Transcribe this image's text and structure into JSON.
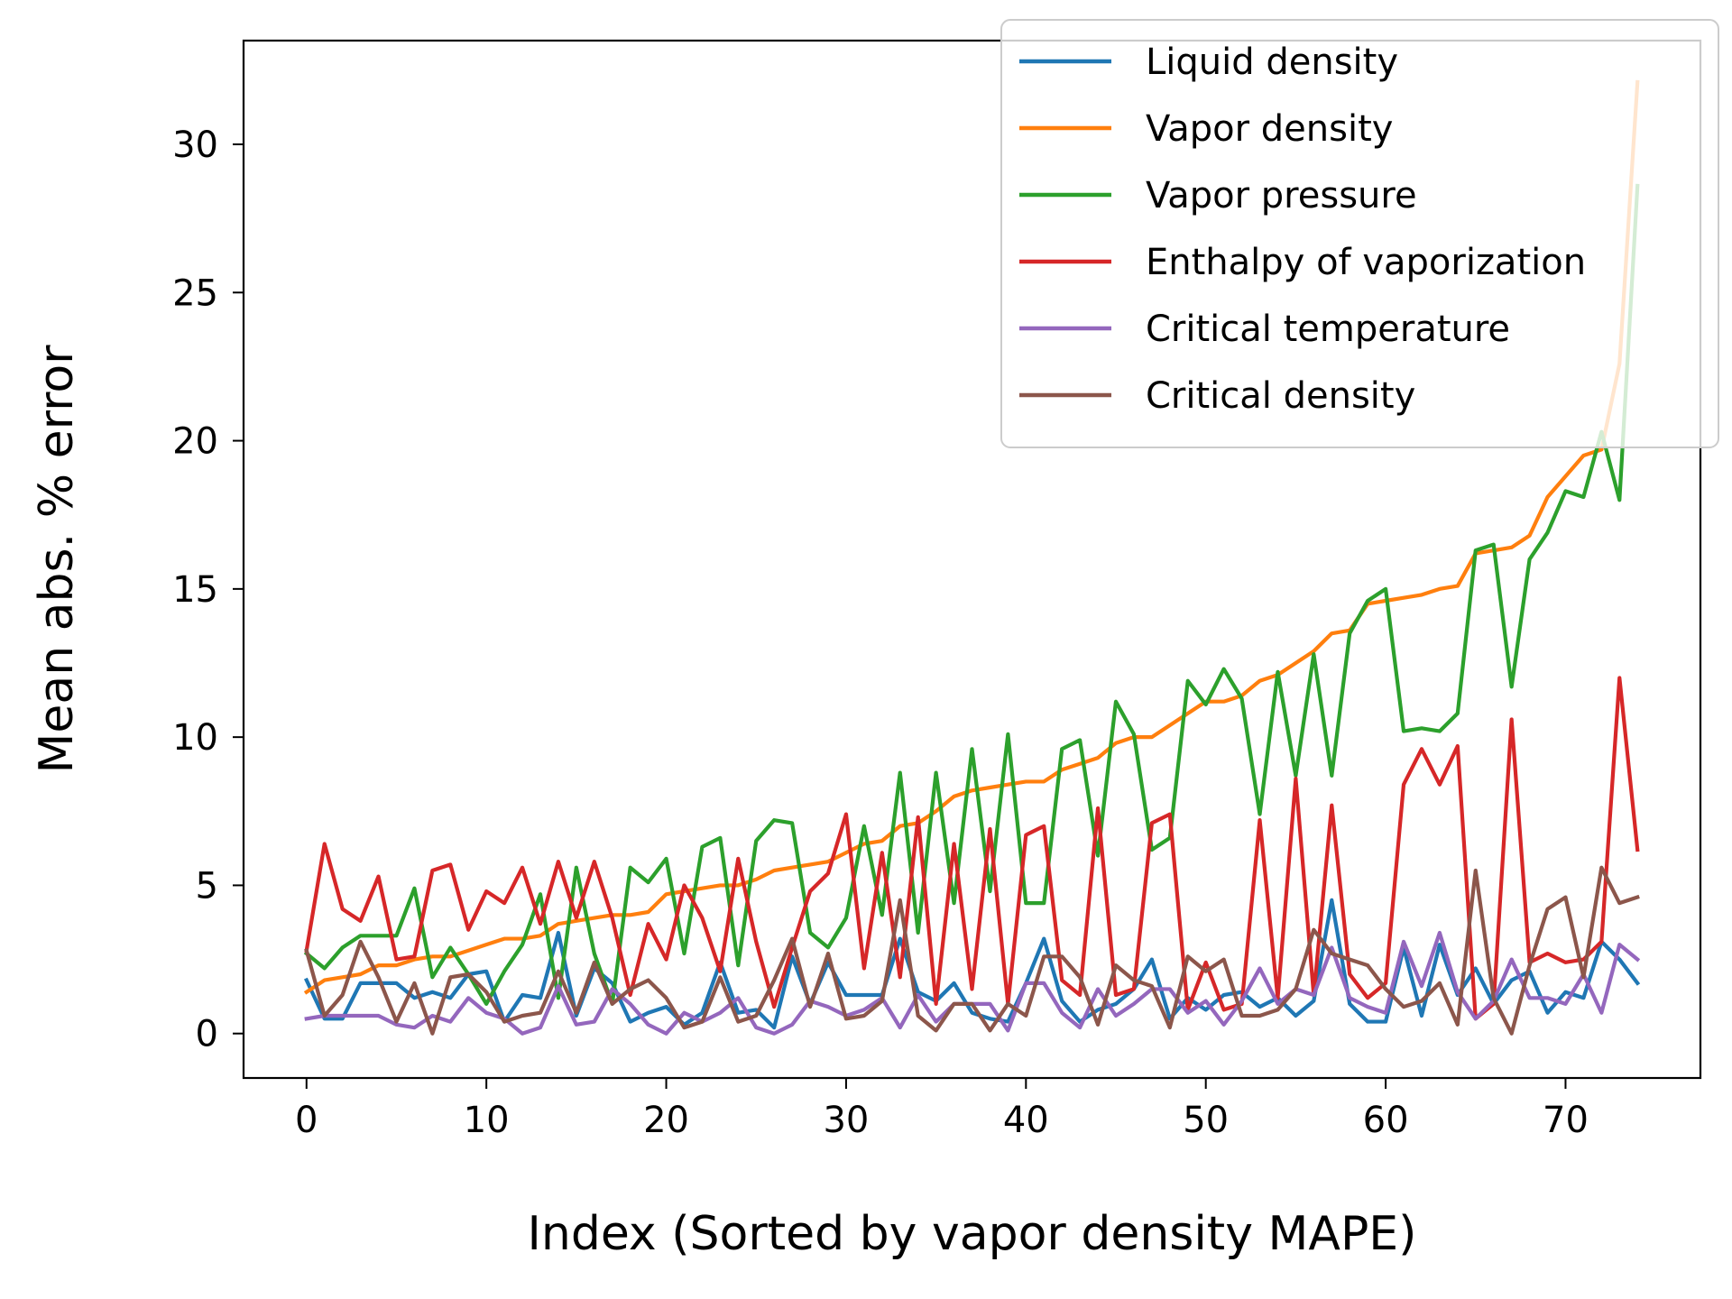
{
  "chart_data": {
    "type": "line",
    "xlabel": "Index (Sorted by vapor density MAPE)",
    "ylabel": "Mean abs. % error",
    "xlim": [
      -3.5,
      77.5
    ],
    "ylim": [
      -1.5,
      33.5
    ],
    "xticks": [
      0,
      10,
      20,
      30,
      40,
      50,
      60,
      70
    ],
    "yticks": [
      0,
      5,
      10,
      15,
      20,
      25,
      30
    ],
    "grid": false,
    "legend_position": "top-right",
    "series": [
      {
        "name": "Liquid density",
        "color": "#1f77b4",
        "values": [
          1.8,
          0.5,
          0.5,
          1.7,
          1.7,
          1.7,
          1.2,
          1.4,
          1.2,
          2.0,
          2.1,
          0.4,
          1.3,
          1.2,
          3.4,
          0.6,
          2.2,
          1.7,
          0.4,
          0.7,
          0.9,
          0.3,
          0.7,
          2.4,
          0.7,
          0.8,
          0.2,
          2.6,
          1.0,
          2.4,
          1.3,
          1.3,
          1.3,
          3.2,
          1.4,
          1.1,
          1.7,
          0.7,
          0.5,
          0.4,
          1.7,
          3.2,
          1.1,
          0.4,
          0.8,
          1.0,
          1.5,
          2.5,
          0.5,
          1.2,
          0.8,
          1.3,
          1.4,
          0.9,
          1.2,
          0.6,
          1.1,
          4.5,
          1.0,
          0.4,
          0.4,
          2.9,
          0.6,
          3.0,
          1.3,
          2.2,
          1.0,
          1.8,
          2.1,
          0.7,
          1.4,
          1.2,
          3.1,
          2.5,
          1.7
        ]
      },
      {
        "name": "Vapor density",
        "color": "#ff7f0e",
        "values": [
          1.4,
          1.8,
          1.9,
          2.0,
          2.3,
          2.3,
          2.5,
          2.6,
          2.6,
          2.8,
          3.0,
          3.2,
          3.2,
          3.3,
          3.7,
          3.8,
          3.9,
          4.0,
          4.0,
          4.1,
          4.7,
          4.8,
          4.9,
          5.0,
          5.0,
          5.2,
          5.5,
          5.6,
          5.7,
          5.8,
          6.1,
          6.4,
          6.5,
          7.0,
          7.1,
          7.5,
          8.0,
          8.2,
          8.3,
          8.4,
          8.5,
          8.5,
          8.9,
          9.1,
          9.3,
          9.8,
          10.0,
          10.0,
          10.4,
          10.8,
          11.2,
          11.2,
          11.4,
          11.9,
          12.1,
          12.5,
          12.9,
          13.5,
          13.6,
          14.5,
          14.6,
          14.7,
          14.8,
          15.0,
          15.1,
          16.2,
          16.3,
          16.4,
          16.8,
          18.1,
          18.8,
          19.5,
          19.7,
          22.6,
          32.1
        ]
      },
      {
        "name": "Vapor pressure",
        "color": "#2ca02c",
        "values": [
          2.7,
          2.2,
          2.9,
          3.3,
          3.3,
          3.3,
          4.9,
          1.9,
          2.9,
          2.0,
          1.0,
          2.1,
          3.0,
          4.7,
          1.2,
          5.6,
          2.7,
          1.0,
          5.6,
          5.1,
          5.9,
          2.7,
          6.3,
          6.6,
          2.3,
          6.5,
          7.2,
          7.1,
          3.4,
          2.9,
          3.9,
          7.0,
          4.0,
          8.8,
          3.4,
          8.8,
          4.4,
          9.6,
          4.8,
          10.1,
          4.4,
          4.4,
          9.6,
          9.9,
          6.0,
          11.2,
          10.1,
          6.2,
          6.6,
          11.9,
          11.1,
          12.3,
          11.3,
          7.4,
          12.2,
          8.7,
          12.8,
          8.7,
          13.5,
          14.6,
          15.0,
          10.2,
          10.3,
          10.2,
          10.8,
          16.3,
          16.5,
          11.7,
          16.0,
          16.9,
          18.3,
          18.1,
          20.3,
          18.0,
          28.6
        ]
      },
      {
        "name": "Enthalpy of vaporization",
        "color": "#d62728",
        "values": [
          2.8,
          6.4,
          4.2,
          3.8,
          5.3,
          2.5,
          2.6,
          5.5,
          5.7,
          3.5,
          4.8,
          4.4,
          5.6,
          3.7,
          5.8,
          3.9,
          5.8,
          3.9,
          1.3,
          3.7,
          2.5,
          5.0,
          3.9,
          2.1,
          5.9,
          3.1,
          0.9,
          2.9,
          4.8,
          5.4,
          7.4,
          2.2,
          6.1,
          1.9,
          7.3,
          1.0,
          6.4,
          1.5,
          6.9,
          1.0,
          6.7,
          7.0,
          1.8,
          1.3,
          7.6,
          1.3,
          1.5,
          7.1,
          7.4,
          0.8,
          2.4,
          0.8,
          1.0,
          7.2,
          1.2,
          8.6,
          1.3,
          7.7,
          2.0,
          1.2,
          1.7,
          8.4,
          9.6,
          8.4,
          9.7,
          0.5,
          1.0,
          10.6,
          2.4,
          2.7,
          2.4,
          2.5,
          3.1,
          12.0,
          6.2
        ]
      },
      {
        "name": "Critical temperature",
        "color": "#9467bd",
        "values": [
          0.5,
          0.6,
          0.6,
          0.6,
          0.6,
          0.3,
          0.2,
          0.6,
          0.4,
          1.2,
          0.7,
          0.5,
          0.0,
          0.2,
          1.6,
          0.3,
          0.4,
          1.5,
          1.0,
          0.3,
          0.0,
          0.7,
          0.4,
          0.7,
          1.2,
          0.2,
          0.0,
          0.3,
          1.1,
          0.9,
          0.6,
          0.8,
          1.2,
          0.2,
          1.3,
          0.4,
          1.0,
          1.0,
          1.0,
          0.1,
          1.7,
          1.7,
          0.7,
          0.2,
          1.5,
          0.6,
          1.0,
          1.5,
          1.5,
          0.7,
          1.1,
          0.3,
          1.1,
          2.2,
          1.0,
          1.5,
          1.3,
          2.9,
          1.2,
          0.9,
          0.7,
          3.1,
          1.6,
          3.4,
          1.4,
          0.5,
          1.1,
          2.5,
          1.2,
          1.2,
          1.0,
          2.0,
          0.7,
          3.0,
          2.5
        ]
      },
      {
        "name": "Critical density",
        "color": "#8c564b",
        "values": [
          2.8,
          0.6,
          1.3,
          3.1,
          1.9,
          0.4,
          1.7,
          0.0,
          1.9,
          2.0,
          1.4,
          0.4,
          0.6,
          0.7,
          2.1,
          0.7,
          2.4,
          1.0,
          1.5,
          1.8,
          1.2,
          0.2,
          0.4,
          1.9,
          0.4,
          0.6,
          1.8,
          3.2,
          0.9,
          2.7,
          0.5,
          0.6,
          1.1,
          4.5,
          0.6,
          0.1,
          1.0,
          1.0,
          0.1,
          1.0,
          0.6,
          2.6,
          2.6,
          1.9,
          0.3,
          2.3,
          1.8,
          1.6,
          0.2,
          2.6,
          2.1,
          2.5,
          0.6,
          0.6,
          0.8,
          1.5,
          3.5,
          2.7,
          2.5,
          2.3,
          1.5,
          0.9,
          1.1,
          1.7,
          0.3,
          5.5,
          1.2,
          0.0,
          2.3,
          4.2,
          4.6,
          1.9,
          5.6,
          4.4,
          4.6
        ]
      }
    ]
  }
}
